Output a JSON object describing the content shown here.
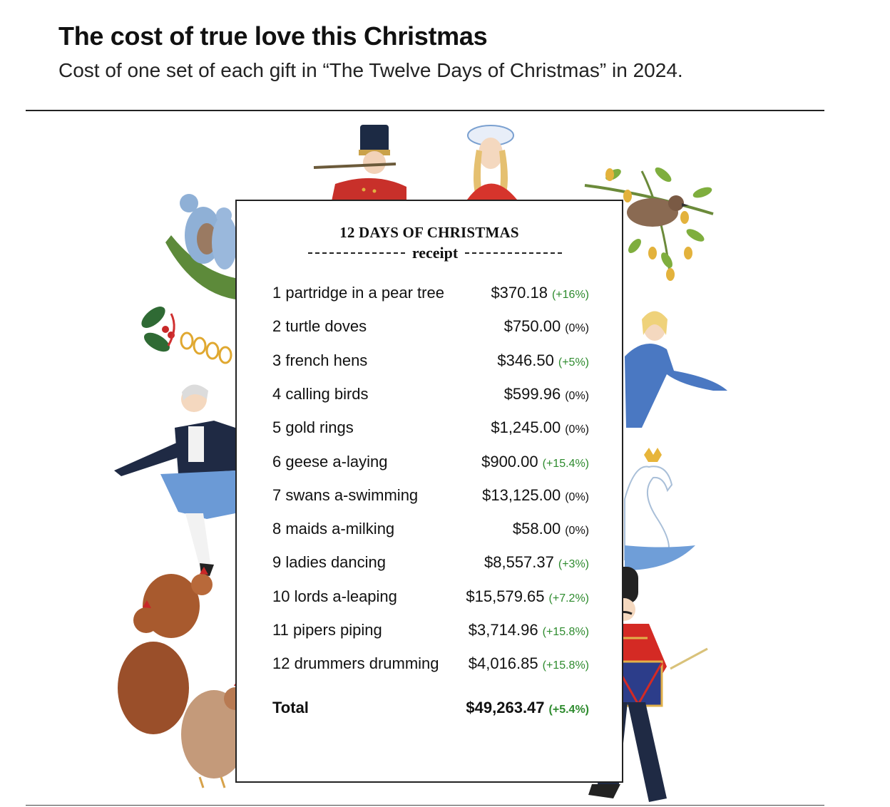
{
  "header": {
    "title": "The cost of true love this Christmas",
    "subtitle": "Cost of one set of each gift in “The Twelve Days of Christmas” in 2024."
  },
  "receipt": {
    "heading": "12 DAYS OF CHRISTMAS",
    "subheading": "receipt"
  },
  "colors": {
    "increase": "#2e8b2e",
    "no_change": "#111111",
    "text": "#111111",
    "rule": "#222222"
  },
  "chart_data": {
    "type": "table",
    "columns": [
      "gift",
      "cost",
      "change"
    ],
    "rows": [
      {
        "gift": "1 partridge in a pear tree",
        "cost": "$370.18",
        "change": "(+16%)",
        "value": 370.18,
        "change_pct": 16
      },
      {
        "gift": "2 turtle doves",
        "cost": "$750.00",
        "change": "(0%)",
        "value": 750.0,
        "change_pct": 0
      },
      {
        "gift": "3 french hens",
        "cost": "$346.50",
        "change": "(+5%)",
        "value": 346.5,
        "change_pct": 5
      },
      {
        "gift": "4 calling birds",
        "cost": "$599.96",
        "change": "(0%)",
        "value": 599.96,
        "change_pct": 0
      },
      {
        "gift": "5 gold rings",
        "cost": "$1,245.00",
        "change": "(0%)",
        "value": 1245.0,
        "change_pct": 0
      },
      {
        "gift": "6 geese a-laying",
        "cost": "$900.00",
        "change": "(+15.4%)",
        "value": 900.0,
        "change_pct": 15.4
      },
      {
        "gift": "7 swans a-swimming",
        "cost": "$13,125.00",
        "change": "(0%)",
        "value": 13125.0,
        "change_pct": 0
      },
      {
        "gift": "8 maids a-milking",
        "cost": "$58.00",
        "change": "(0%)",
        "value": 58.0,
        "change_pct": 0
      },
      {
        "gift": "9 ladies dancing",
        "cost": "$8,557.37",
        "change": "(+3%)",
        "value": 8557.37,
        "change_pct": 3
      },
      {
        "gift": "10 lords a-leaping",
        "cost": "$15,579.65",
        "change": "(+7.2%)",
        "value": 15579.65,
        "change_pct": 7.2
      },
      {
        "gift": "11 pipers piping",
        "cost": "$3,714.96",
        "change": "(+15.8%)",
        "value": 3714.96,
        "change_pct": 15.8
      },
      {
        "gift": "12 drummers drumming",
        "cost": "$4,016.85",
        "change": "(+15.8%)",
        "value": 4016.85,
        "change_pct": 15.8
      }
    ],
    "total": {
      "label": "Total",
      "cost": "$49,263.47",
      "change": "(+5.4%)",
      "value": 49263.47,
      "change_pct": 5.4
    }
  },
  "illustrations": [
    "drummer-boy-flute-icon",
    "milkmaid-icon",
    "partridge-pear-tree-icon",
    "turtle-doves-icon",
    "holly-gold-rings-icon",
    "lady-dancing-icon",
    "lord-leaping-icon",
    "swan-icon",
    "french-hens-icon",
    "drummer-icon"
  ]
}
